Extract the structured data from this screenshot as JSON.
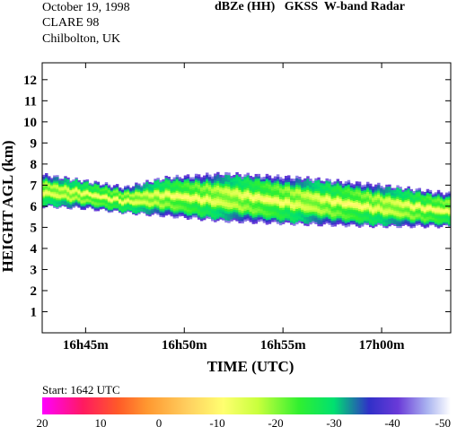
{
  "header": {
    "date": "October 19, 1998",
    "campaign": "CLARE 98",
    "location": "Chilbolton, UK",
    "title": "dBZe (HH)   GKSS  W-band Radar"
  },
  "start_label": "Start: 1642 UTC",
  "chart_data": {
    "type": "heatmap",
    "xlabel": "TIME (UTC)",
    "ylabel": "HEIGHT AGL (km)",
    "x_ticks": [
      "16h45m",
      "16h50m",
      "16h55m",
      "17h00m"
    ],
    "y_ticks": [
      "1",
      "2",
      "3",
      "4",
      "5",
      "6",
      "7",
      "8",
      "9",
      "10",
      "11",
      "12"
    ],
    "xlim_minutes_after_1640": [
      2.8,
      23.5
    ],
    "x_tick_minutes_after_1640": [
      5,
      10,
      15,
      20
    ],
    "ylim_km": [
      0,
      12.8
    ],
    "colorbar": {
      "tick_labels": [
        "20",
        "10",
        "0",
        "-10",
        "-20",
        "-30",
        "-40",
        "-50"
      ],
      "range_dbz": [
        20,
        -50
      ],
      "stops": [
        {
          "v": 20,
          "c": "#ff00ff"
        },
        {
          "v": 13,
          "c": "#ff1a60"
        },
        {
          "v": 7,
          "c": "#ff5a28"
        },
        {
          "v": 2,
          "c": "#ff9830"
        },
        {
          "v": -5,
          "c": "#ffd060"
        },
        {
          "v": -11,
          "c": "#ffff70"
        },
        {
          "v": -17,
          "c": "#c8ff3c"
        },
        {
          "v": -24,
          "c": "#30f030"
        },
        {
          "v": -30,
          "c": "#00e070"
        },
        {
          "v": -36,
          "c": "#3030c8"
        },
        {
          "v": -41,
          "c": "#6a3ad8"
        },
        {
          "v": -46,
          "c": "#aab4f0"
        },
        {
          "v": -50,
          "c": "#ffffff"
        }
      ]
    },
    "cloud_layer": {
      "top_km": [
        [
          2.8,
          7.5
        ],
        [
          5,
          7.2
        ],
        [
          7,
          6.9
        ],
        [
          9,
          7.35
        ],
        [
          12,
          7.55
        ],
        [
          16,
          7.35
        ],
        [
          20,
          7.0
        ],
        [
          23.5,
          6.6
        ]
      ],
      "base_km": [
        [
          2.8,
          6.0
        ],
        [
          5,
          5.9
        ],
        [
          7,
          5.7
        ],
        [
          9,
          5.55
        ],
        [
          12,
          5.3
        ],
        [
          16,
          5.15
        ],
        [
          20,
          5.05
        ],
        [
          23.5,
          5.05
        ]
      ],
      "core_dbz": -15,
      "edge_dbz": -42
    }
  }
}
